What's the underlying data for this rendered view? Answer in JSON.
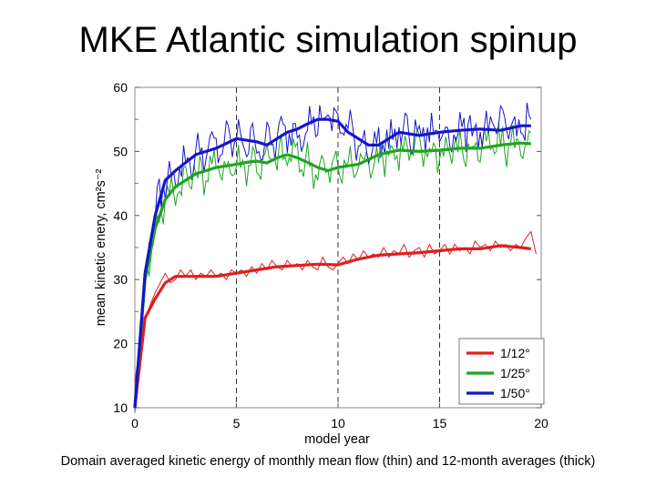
{
  "slide": {
    "title": "MKE Atlantic simulation spinup",
    "caption": "Domain averaged kinetic energy of monthly mean flow (thin) and 12-month averages (thick)"
  },
  "chart_data": {
    "type": "line",
    "title": "",
    "xlabel": "model year",
    "ylabel": "mean kinetic enery, cm²s⁻²",
    "xlim": [
      0,
      20
    ],
    "ylim": [
      10,
      60
    ],
    "xticks": [
      0,
      5,
      10,
      15,
      20
    ],
    "yticks": [
      10,
      20,
      30,
      40,
      50,
      60
    ],
    "vertical_dashed_lines": [
      5,
      10,
      15
    ],
    "legend_placement": "bottom-right",
    "series": [
      {
        "name": "1/12°",
        "color": "#e01e1e",
        "thick_x": [
          0,
          0.5,
          1.0,
          1.5,
          2.0,
          3.0,
          4.0,
          5.0,
          6.0,
          7.0,
          8.0,
          9.0,
          10.0,
          11.0,
          12.0,
          13.0,
          14.0,
          15.0,
          16.0,
          17.0,
          18.0,
          19.0,
          19.5
        ],
        "thick_y": [
          10,
          24,
          27,
          29.5,
          30.5,
          30.5,
          30.5,
          31,
          31.5,
          32,
          32.2,
          32.4,
          32.3,
          33.2,
          33.8,
          34,
          34.2,
          34.5,
          34.8,
          34.8,
          35.3,
          35,
          34.8
        ],
        "thin_x": [
          0,
          0.25,
          0.5,
          0.75,
          1.0,
          1.25,
          1.5,
          1.75,
          2.0,
          2.25,
          2.5,
          2.75,
          3.0,
          3.25,
          3.5,
          3.75,
          4.0,
          4.25,
          4.5,
          4.75,
          5.0,
          5.25,
          5.5,
          5.75,
          6.0,
          6.25,
          6.5,
          6.75,
          7.0,
          7.25,
          7.5,
          7.75,
          8.0,
          8.25,
          8.5,
          8.75,
          9.0,
          9.25,
          9.5,
          9.75,
          10.0,
          10.25,
          10.5,
          10.75,
          11.0,
          11.25,
          11.5,
          11.75,
          12.0,
          12.25,
          12.5,
          12.75,
          13.0,
          13.25,
          13.5,
          13.75,
          14.0,
          14.25,
          14.5,
          14.75,
          15.0,
          15.25,
          15.5,
          15.75,
          16.0,
          16.25,
          16.5,
          16.75,
          17.0,
          17.25,
          17.5,
          17.75,
          18.0,
          18.25,
          18.5,
          18.75,
          19.0,
          19.25,
          19.5,
          19.75
        ],
        "thin_y": [
          14,
          20,
          24,
          26,
          28,
          29.5,
          31,
          29.5,
          30,
          31.5,
          30.5,
          31.5,
          30,
          31,
          30.5,
          31.5,
          30.5,
          31,
          30,
          31.5,
          31,
          31.5,
          30.5,
          32,
          31,
          32.5,
          31.5,
          33,
          32,
          31.5,
          33,
          32,
          32.5,
          31.5,
          33,
          32,
          31.5,
          33.5,
          32,
          31.5,
          32.5,
          33.5,
          32.5,
          34,
          33,
          34.5,
          33.5,
          34,
          33.5,
          35,
          33.5,
          34.5,
          34,
          35.5,
          33.5,
          34.5,
          35,
          33.5,
          35.5,
          34,
          34.5,
          35.5,
          34,
          35.5,
          34.5,
          35,
          34,
          36,
          35,
          35.5,
          34.5,
          36,
          35,
          35.5,
          34.5,
          35.5,
          35,
          36.5,
          37.5,
          34
        ]
      },
      {
        "name": "1/25°",
        "color": "#1fa51f",
        "thick_x": [
          0,
          0.5,
          1.0,
          1.5,
          2.0,
          3.0,
          4.0,
          5.0,
          5.5,
          6.0,
          6.5,
          7.0,
          7.5,
          8.0,
          8.5,
          9.0,
          9.5,
          10.0,
          11.0,
          12.0,
          13.0,
          14.0,
          15.0,
          16.0,
          17.0,
          18.0,
          19.0,
          19.5
        ],
        "thick_y": [
          10,
          30,
          38,
          42.5,
          44.5,
          46.5,
          47.5,
          48,
          48.3,
          48.5,
          48.2,
          49,
          49.5,
          49,
          48.3,
          47.5,
          47,
          47.5,
          48,
          49.5,
          50.2,
          50,
          50.2,
          50.5,
          50.5,
          51,
          51.3,
          51.2
        ]
      },
      {
        "name": "1/50°",
        "color": "#1515c8",
        "thick_x": [
          0,
          0.5,
          1.0,
          1.5,
          2.0,
          3.0,
          4.0,
          5.0,
          6.0,
          6.5,
          7.0,
          7.5,
          8.0,
          8.5,
          9.0,
          9.5,
          10.0,
          10.5,
          11.0,
          11.5,
          12.0,
          12.5,
          13.0,
          14.0,
          15.0,
          16.0,
          17.0,
          18.0,
          19.0,
          19.5
        ],
        "thick_y": [
          10,
          31,
          40,
          45.5,
          47,
          49.5,
          50.5,
          52,
          51.5,
          51,
          52,
          53,
          53.5,
          54.3,
          55,
          55,
          54.7,
          53,
          52,
          51,
          51,
          52,
          53,
          52.5,
          53,
          53.3,
          53.5,
          53.3,
          54,
          54
        ]
      }
    ]
  }
}
